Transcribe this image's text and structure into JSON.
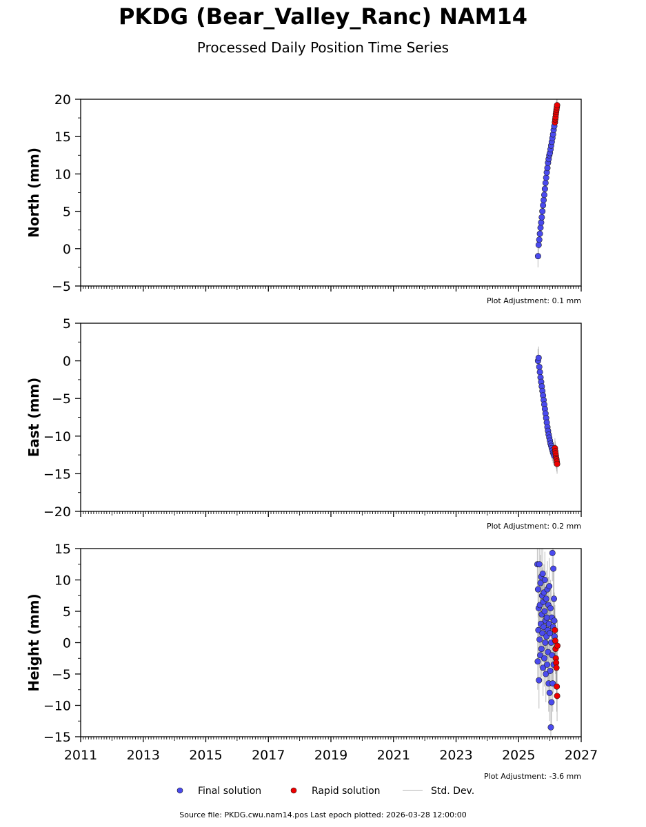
{
  "title": "PKDG (Bear_Valley_Ranc) NAM14",
  "subtitle": "Processed Daily Position Time Series",
  "footer": "Source file: PKDG.cwu.nam14.pos  Last epoch plotted: 2026-03-28 12:00:00",
  "legend": {
    "placement": "bottom-center",
    "final_label": "Final solution",
    "rapid_label": "Rapid solution",
    "std_label": "Std. Dev."
  },
  "colors": {
    "final": "#4a4aee",
    "rapid": "#ee0000",
    "std": "#808080",
    "marker_edge": "#202020"
  },
  "chart_data": [
    {
      "type": "scatter",
      "name": "north",
      "ylabel": "North (mm)",
      "ylim": [
        -5,
        20
      ],
      "yticks": [
        -5,
        0,
        5,
        10,
        15,
        20
      ],
      "xlim": [
        2011,
        2027
      ],
      "xticks": [
        2011,
        2013,
        2015,
        2017,
        2019,
        2021,
        2023,
        2025,
        2027
      ],
      "show_xticklabels": false,
      "adjustment": "Plot Adjustment: 0.1 mm",
      "final": {
        "x": [
          2025.62,
          2025.64,
          2025.66,
          2025.68,
          2025.7,
          2025.72,
          2025.74,
          2025.76,
          2025.78,
          2025.8,
          2025.82,
          2025.84,
          2025.86,
          2025.88,
          2025.9,
          2025.92,
          2025.94,
          2025.96,
          2025.98,
          2026.0,
          2026.02,
          2026.04,
          2026.06,
          2026.08,
          2026.1,
          2026.12,
          2026.14
        ],
        "y": [
          -1.0,
          0.5,
          1.2,
          2.0,
          2.8,
          3.5,
          4.2,
          5.0,
          5.8,
          6.5,
          7.2,
          8.0,
          8.8,
          9.5,
          10.2,
          10.8,
          11.5,
          12.0,
          12.5,
          12.8,
          13.3,
          13.8,
          14.3,
          14.8,
          15.3,
          15.9,
          16.4
        ],
        "err": [
          1.5,
          1.3,
          1.2,
          1.2,
          1.2,
          1.2,
          1.2,
          1.2,
          1.2,
          1.2,
          1.2,
          1.2,
          1.2,
          1.2,
          1.2,
          1.2,
          1.2,
          1.2,
          1.2,
          1.2,
          1.2,
          1.2,
          1.2,
          1.2,
          1.2,
          1.2,
          1.2
        ]
      },
      "rapid": {
        "x": [
          2026.16,
          2026.17,
          2026.18,
          2026.19,
          2026.2,
          2026.21,
          2026.22,
          2026.23
        ],
        "y": [
          16.9,
          17.3,
          17.6,
          18.0,
          18.3,
          18.6,
          18.9,
          19.2
        ],
        "err": [
          1.2,
          1.2,
          1.2,
          1.2,
          1.2,
          1.2,
          1.2,
          1.2
        ]
      }
    },
    {
      "type": "scatter",
      "name": "east",
      "ylabel": "East (mm)",
      "ylim": [
        -20,
        5
      ],
      "yticks": [
        -20,
        -15,
        -10,
        -5,
        0,
        5
      ],
      "xlim": [
        2011,
        2027
      ],
      "xticks": [
        2011,
        2013,
        2015,
        2017,
        2019,
        2021,
        2023,
        2025,
        2027
      ],
      "show_xticklabels": false,
      "adjustment": "Plot Adjustment: 0.2 mm",
      "final": {
        "x": [
          2025.62,
          2025.64,
          2025.66,
          2025.68,
          2025.7,
          2025.72,
          2025.74,
          2025.76,
          2025.78,
          2025.8,
          2025.82,
          2025.84,
          2025.86,
          2025.88,
          2025.9,
          2025.92,
          2025.94,
          2025.96,
          2025.98,
          2026.0,
          2026.02,
          2026.04,
          2026.06,
          2026.08,
          2026.1,
          2026.12,
          2026.14
        ],
        "y": [
          0.0,
          0.4,
          -0.8,
          -1.5,
          -2.2,
          -2.8,
          -3.4,
          -4.0,
          -4.6,
          -5.2,
          -5.8,
          -6.4,
          -7.0,
          -7.6,
          -8.2,
          -8.8,
          -9.3,
          -9.8,
          -10.2,
          -10.6,
          -11.0,
          -11.3,
          -11.6,
          -11.9,
          -12.2,
          -12.4,
          -12.6
        ],
        "err": [
          1.6,
          1.5,
          1.4,
          1.4,
          1.4,
          1.4,
          1.4,
          1.4,
          1.4,
          1.4,
          1.4,
          1.4,
          1.4,
          1.4,
          1.4,
          1.4,
          1.4,
          1.4,
          1.4,
          1.4,
          1.4,
          1.4,
          1.4,
          1.4,
          1.4,
          1.4,
          1.4
        ]
      },
      "rapid": {
        "x": [
          2026.16,
          2026.17,
          2026.18,
          2026.19,
          2026.2,
          2026.21,
          2026.22,
          2026.23
        ],
        "y": [
          -11.6,
          -12.0,
          -12.3,
          -12.6,
          -12.9,
          -13.1,
          -13.4,
          -13.7
        ],
        "err": [
          1.3,
          1.3,
          1.3,
          1.3,
          1.3,
          1.3,
          1.3,
          1.3
        ]
      }
    },
    {
      "type": "scatter",
      "name": "height",
      "ylabel": "Height (mm)",
      "ylim": [
        -15,
        15
      ],
      "yticks": [
        -15,
        -10,
        -5,
        0,
        5,
        10,
        15
      ],
      "xlim": [
        2011,
        2027
      ],
      "xticks": [
        2011,
        2013,
        2015,
        2017,
        2019,
        2021,
        2023,
        2025,
        2027
      ],
      "show_xticklabels": true,
      "adjustment": "Plot Adjustment: -3.6 mm",
      "final": {
        "x": [
          2025.6,
          2025.61,
          2025.62,
          2025.63,
          2025.64,
          2025.65,
          2025.66,
          2025.67,
          2025.68,
          2025.69,
          2025.7,
          2025.71,
          2025.72,
          2025.73,
          2025.74,
          2025.75,
          2025.76,
          2025.77,
          2025.78,
          2025.79,
          2025.8,
          2025.81,
          2025.82,
          2025.83,
          2025.84,
          2025.85,
          2025.86,
          2025.87,
          2025.88,
          2025.89,
          2025.9,
          2025.91,
          2025.92,
          2025.93,
          2025.94,
          2025.95,
          2025.96,
          2025.97,
          2025.98,
          2025.99,
          2026.0,
          2026.01,
          2026.02,
          2026.03,
          2026.04,
          2026.05,
          2026.06,
          2026.07,
          2026.08,
          2026.09,
          2026.1,
          2026.11,
          2026.12,
          2026.13,
          2026.14,
          2026.15
        ],
        "y": [
          12.5,
          -3.0,
          8.5,
          2.0,
          5.5,
          -6.0,
          12.5,
          0.5,
          6.0,
          -2.0,
          9.5,
          3.0,
          10.5,
          -1.0,
          4.5,
          7.5,
          1.5,
          11.0,
          -4.0,
          6.5,
          2.5,
          8.0,
          -2.5,
          5.0,
          10.0,
          0.0,
          3.5,
          -5.0,
          7.0,
          1.0,
          4.0,
          -3.5,
          8.5,
          2.0,
          -1.5,
          6.0,
          -6.5,
          3.0,
          9.0,
          -8.0,
          1.5,
          -4.5,
          5.5,
          -13.5,
          0.0,
          -9.5,
          4.0,
          -2.0,
          14.3,
          -6.5,
          2.5,
          11.8,
          -3.5,
          7.0,
          3.5,
          1.0
        ],
        "err": [
          4.5,
          4.5,
          4.5,
          4.5,
          4.5,
          4.5,
          4.5,
          4.5,
          4.5,
          4.5,
          4.5,
          4.5,
          4.5,
          4.5,
          4.5,
          4.5,
          4.5,
          4.5,
          4.5,
          4.5,
          4.5,
          4.5,
          4.5,
          4.5,
          4.5,
          4.5,
          4.5,
          4.5,
          4.5,
          4.5,
          4.5,
          4.5,
          4.5,
          4.5,
          4.5,
          4.5,
          4.5,
          4.5,
          4.5,
          4.5,
          4.5,
          4.5,
          4.5,
          4.5,
          4.5,
          4.5,
          4.5,
          4.5,
          4.5,
          4.5,
          4.5,
          4.5,
          4.5,
          4.5,
          4.5,
          4.5
        ]
      },
      "rapid": {
        "x": [
          2026.16,
          2026.17,
          2026.18,
          2026.19,
          2026.2,
          2026.21,
          2026.22,
          2026.23,
          2026.24
        ],
        "y": [
          2.0,
          0.3,
          -1.0,
          -2.5,
          -3.2,
          -4.0,
          -7.0,
          -8.5,
          -0.5
        ],
        "err": [
          4.0,
          4.0,
          4.0,
          4.0,
          4.0,
          4.0,
          4.0,
          4.0,
          4.0
        ]
      }
    }
  ]
}
